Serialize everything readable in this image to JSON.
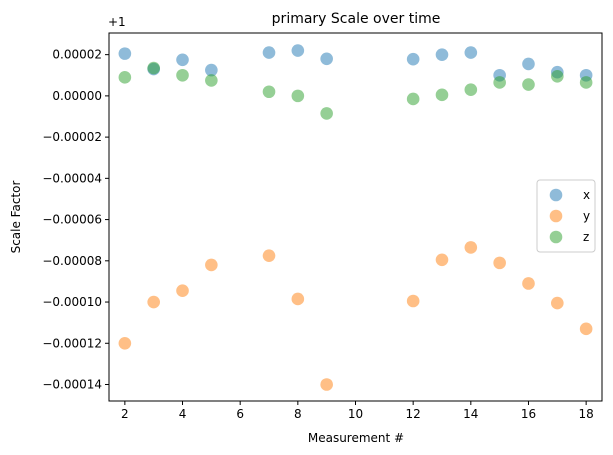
{
  "chart_data": {
    "type": "scatter",
    "title": "primary Scale over time",
    "xlabel": "Measurement #",
    "ylabel": "Scale Factor",
    "offset_text": "+1",
    "x_ticks": [
      2,
      4,
      6,
      8,
      10,
      12,
      14,
      16,
      18
    ],
    "x_tick_labels": [
      "2",
      "4",
      "6",
      "8",
      "10",
      "12",
      "14",
      "16",
      "18"
    ],
    "y_ticks": [
      2e-05,
      0.0,
      -2e-05,
      -4e-05,
      -6e-05,
      -8e-05,
      -0.0001,
      -0.00012,
      -0.00014
    ],
    "y_tick_labels": [
      "0.00002",
      "0.00000",
      "−0.00002",
      "−0.00004",
      "−0.00006",
      "−0.00008",
      "−0.00010",
      "−0.00012",
      "−0.00014"
    ],
    "xlim": [
      1.45,
      18.55
    ],
    "ylim": [
      -0.000148,
      3.05e-05
    ],
    "legend_position": "center-right",
    "grid": false,
    "series": [
      {
        "name": "x",
        "color": "#1f77b4",
        "points": [
          [
            2,
            2.05e-05
          ],
          [
            3,
            1.3e-05
          ],
          [
            4,
            1.75e-05
          ],
          [
            5,
            1.25e-05
          ],
          [
            7,
            2.1e-05
          ],
          [
            8,
            2.2e-05
          ],
          [
            9,
            1.8e-05
          ],
          [
            12,
            1.78e-05
          ],
          [
            13,
            2e-05
          ],
          [
            14,
            2.1e-05
          ],
          [
            15,
            1e-05
          ],
          [
            16,
            1.55e-05
          ],
          [
            17,
            1.15e-05
          ],
          [
            18,
            1e-05
          ]
        ]
      },
      {
        "name": "y",
        "color": "#ff7f0e",
        "points": [
          [
            2,
            -0.00012
          ],
          [
            3,
            -0.0001
          ],
          [
            4,
            -9.45e-05
          ],
          [
            5,
            -8.2e-05
          ],
          [
            7,
            -7.75e-05
          ],
          [
            8,
            -9.85e-05
          ],
          [
            9,
            -0.00014
          ],
          [
            12,
            -9.95e-05
          ],
          [
            13,
            -7.95e-05
          ],
          [
            14,
            -7.35e-05
          ],
          [
            15,
            -8.1e-05
          ],
          [
            16,
            -9.1e-05
          ],
          [
            17,
            -0.0001005
          ],
          [
            18,
            -0.000113
          ]
        ]
      },
      {
        "name": "z",
        "color": "#2ca02c",
        "points": [
          [
            2,
            9e-06
          ],
          [
            3,
            1.35e-05
          ],
          [
            4,
            1e-05
          ],
          [
            5,
            7.5e-06
          ],
          [
            7,
            2e-06
          ],
          [
            8,
            0.0
          ],
          [
            9,
            -8.5e-06
          ],
          [
            12,
            -1.5e-06
          ],
          [
            13,
            5e-07
          ],
          [
            14,
            3e-06
          ],
          [
            15,
            6.5e-06
          ],
          [
            16,
            5.5e-06
          ],
          [
            17,
            9.5e-06
          ],
          [
            18,
            6.5e-06
          ]
        ]
      }
    ]
  }
}
